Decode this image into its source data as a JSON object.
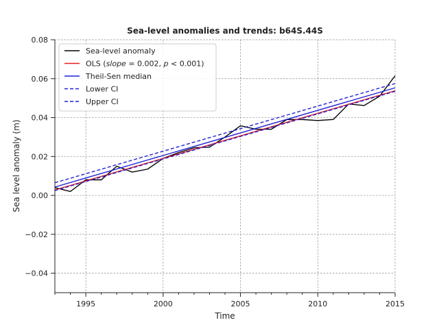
{
  "chart_data": {
    "type": "line",
    "title": "Sea-level anomalies and trends: b64S.44S",
    "xlabel": "Time",
    "ylabel": "Sea level anomaly (m)",
    "xlim": [
      1993,
      2015
    ],
    "ylim": [
      -0.05,
      0.08
    ],
    "xticks": [
      1995,
      2000,
      2005,
      2010,
      2015
    ],
    "yticks": [
      -0.04,
      -0.02,
      0.0,
      0.02,
      0.04,
      0.06,
      0.08
    ],
    "grid": true,
    "legend_position": "top-left",
    "legend": [
      {
        "label": "Sea-level anomaly",
        "color": "#000000",
        "dash": "solid"
      },
      {
        "label_prefix": "OLS (",
        "label_slope": "slope",
        "label_mid": " = 0.002, ",
        "label_p": "p",
        "label_end": " < 0.001)",
        "color": "#e41a1c",
        "dash": "solid"
      },
      {
        "label": "Theil-Sen median",
        "color": "#1f1fd6",
        "dash": "solid"
      },
      {
        "label": "Lower CI",
        "color": "#1f1fd6",
        "dash": "dashed"
      },
      {
        "label": "Upper CI",
        "color": "#1f1fd6",
        "dash": "dashed"
      }
    ],
    "series": [
      {
        "name": "Sea-level anomaly",
        "color": "#000000",
        "dash": "solid",
        "x": [
          1993,
          1994,
          1995,
          1996,
          1997,
          1998,
          1999,
          2000,
          2001,
          2002,
          2003,
          2004,
          2005,
          2006,
          2007,
          2008,
          2009,
          2010,
          2011,
          2012,
          2013,
          2014,
          2015
        ],
        "y": [
          0.004,
          0.002,
          0.008,
          0.008,
          0.015,
          0.012,
          0.0135,
          0.019,
          0.022,
          0.0245,
          0.0248,
          0.03,
          0.0358,
          0.034,
          0.034,
          0.039,
          0.039,
          0.0385,
          0.039,
          0.047,
          0.0462,
          0.051,
          0.0615
        ]
      },
      {
        "name": "OLS",
        "color": "#e41a1c",
        "dash": "solid",
        "x": [
          1993,
          2015
        ],
        "y": [
          0.0028,
          0.0538
        ]
      },
      {
        "name": "Theil-Sen median",
        "color": "#1f1fd6",
        "dash": "solid",
        "x": [
          1993,
          2015
        ],
        "y": [
          0.0043,
          0.0553
        ]
      },
      {
        "name": "Lower CI",
        "color": "#1f1fd6",
        "dash": "dashed",
        "x": [
          1993,
          2015
        ],
        "y": [
          0.0025,
          0.0535
        ]
      },
      {
        "name": "Upper CI",
        "color": "#1f1fd6",
        "dash": "dashed",
        "x": [
          1993,
          2015
        ],
        "y": [
          0.0065,
          0.0575
        ]
      }
    ]
  }
}
